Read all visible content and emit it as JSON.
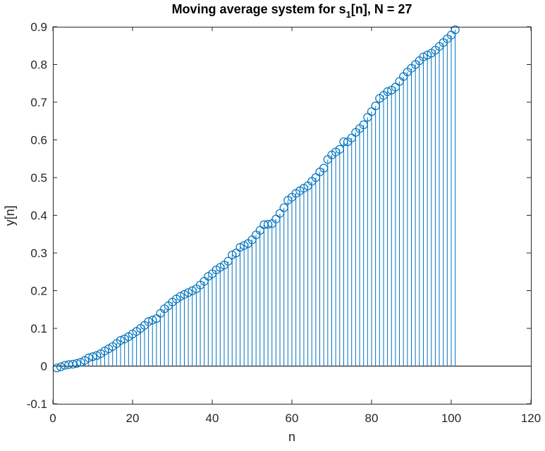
{
  "chart_data": {
    "type": "stem",
    "title": "Moving average system for s",
    "title_subscript": "1",
    "title_suffix": "[n], N = 27",
    "xlabel": "n",
    "ylabel": "y[n]",
    "xlim": [
      0,
      120
    ],
    "ylim": [
      -0.1,
      0.9
    ],
    "xticks": [
      "0",
      "20",
      "40",
      "60",
      "80",
      "100",
      "120"
    ],
    "yticks": [
      "-0.1",
      "0",
      "0.1",
      "0.2",
      "0.3",
      "0.4",
      "0.5",
      "0.6",
      "0.7",
      "0.8",
      "0.9"
    ],
    "grid": false,
    "baseline": 0,
    "series_color": "#0072BD",
    "x_start": 1,
    "values": [
      -0.005,
      -0.002,
      0.002,
      0.004,
      0.005,
      0.007,
      0.01,
      0.015,
      0.022,
      0.025,
      0.028,
      0.033,
      0.04,
      0.046,
      0.052,
      0.06,
      0.068,
      0.072,
      0.078,
      0.085,
      0.092,
      0.1,
      0.108,
      0.118,
      0.122,
      0.126,
      0.14,
      0.152,
      0.16,
      0.17,
      0.178,
      0.185,
      0.19,
      0.195,
      0.2,
      0.205,
      0.215,
      0.225,
      0.238,
      0.245,
      0.255,
      0.262,
      0.268,
      0.278,
      0.295,
      0.3,
      0.315,
      0.32,
      0.325,
      0.335,
      0.348,
      0.36,
      0.375,
      0.376,
      0.378,
      0.39,
      0.405,
      0.42,
      0.44,
      0.448,
      0.458,
      0.465,
      0.472,
      0.478,
      0.49,
      0.5,
      0.515,
      0.525,
      0.548,
      0.56,
      0.568,
      0.575,
      0.595,
      0.595,
      0.605,
      0.62,
      0.63,
      0.64,
      0.66,
      0.675,
      0.69,
      0.71,
      0.718,
      0.728,
      0.732,
      0.74,
      0.755,
      0.768,
      0.78,
      0.79,
      0.8,
      0.81,
      0.82,
      0.825,
      0.83,
      0.838,
      0.848,
      0.858,
      0.868,
      0.878,
      0.892
    ]
  }
}
